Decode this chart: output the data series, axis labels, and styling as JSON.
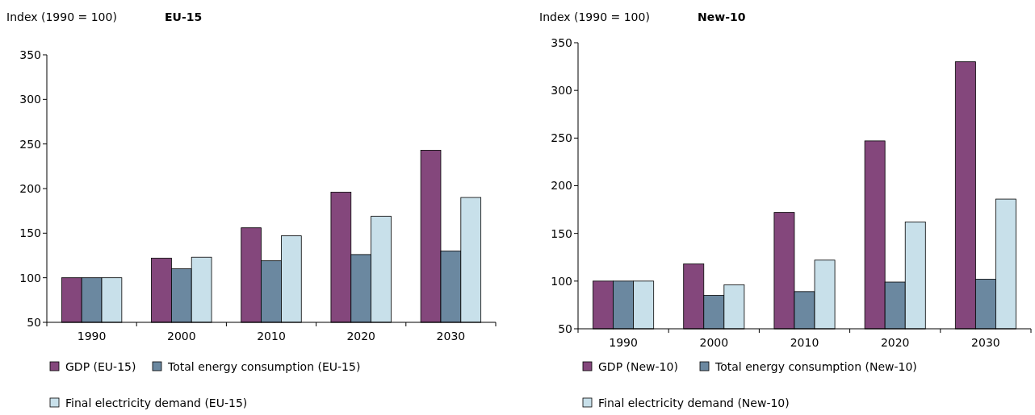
{
  "chart_data": [
    {
      "type": "bar",
      "title": "EU-15",
      "ylabel": "Index (1990 = 100)",
      "categories": [
        "1990",
        "2000",
        "2010",
        "2020",
        "2030"
      ],
      "ylim": [
        50,
        350
      ],
      "yticks": [
        50,
        100,
        150,
        200,
        250,
        300,
        350
      ],
      "legend": "bottom",
      "series": [
        {
          "name": "GDP (EU-15)",
          "color": "#84477c",
          "values": [
            100,
            122,
            156,
            196,
            243
          ]
        },
        {
          "name": "Total energy consumption (EU-15)",
          "color": "#6b88a0",
          "values": [
            100,
            110,
            119,
            126,
            130
          ]
        },
        {
          "name": "Final electricity demand (EU-15)",
          "color": "#c8e0ea",
          "values": [
            100,
            123,
            147,
            169,
            190
          ]
        }
      ]
    },
    {
      "type": "bar",
      "title": "New-10",
      "ylabel": "Index (1990 = 100)",
      "categories": [
        "1990",
        "2000",
        "2010",
        "2020",
        "2030"
      ],
      "ylim": [
        50,
        350
      ],
      "yticks": [
        50,
        100,
        150,
        200,
        250,
        300,
        350
      ],
      "legend": "bottom",
      "series": [
        {
          "name": "GDP (New-10)",
          "color": "#84477c",
          "values": [
            100,
            118,
            172,
            247,
            330
          ]
        },
        {
          "name": "Total energy consumption (New-10)",
          "color": "#6b88a0",
          "values": [
            100,
            85,
            89,
            99,
            102
          ]
        },
        {
          "name": "Final electricity demand (New-10)",
          "color": "#c8e0ea",
          "values": [
            100,
            96,
            122,
            162,
            186
          ]
        }
      ]
    }
  ]
}
